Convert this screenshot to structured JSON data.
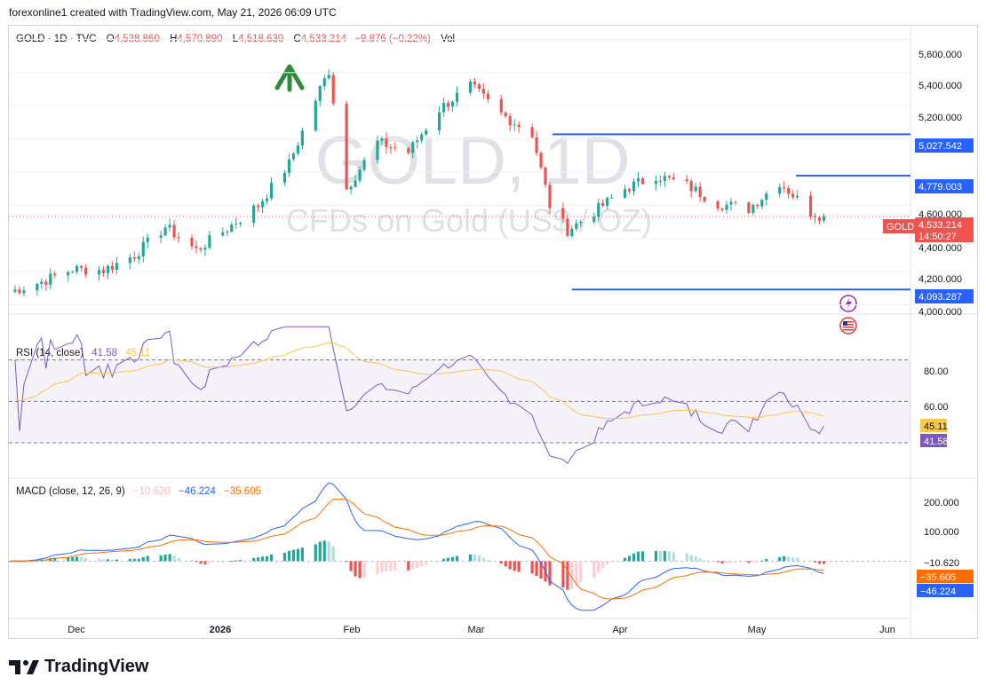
{
  "caption": "forexonline1 created with TradingView.com, May 21, 2026 06:09 UTC",
  "brand": {
    "name": "TradingView"
  },
  "legend": {
    "symbol": "GOLD · 1D · TVC",
    "o_label": "O",
    "o_value": "4,538.860",
    "h_label": "H",
    "h_value": "4,570.890",
    "l_label": "L",
    "l_value": "4,518.630",
    "c_label": "C",
    "c_value": "4,533.214",
    "change": "−9.876 (−0.22%)",
    "vol": "Vol"
  },
  "watermark": {
    "line1": "GOLD, 1D",
    "line2": "CFDs on Gold (US$ / OZ)"
  },
  "price_axis": [
    "5,600.000",
    "5,400.000",
    "5,200.000",
    "4,600.000",
    "4,400.000",
    "4,200.000",
    "4,000.000"
  ],
  "levels": [
    {
      "label": "5,027.542",
      "value": 5027.542
    },
    {
      "label": "4,779.003",
      "value": 4779.003
    },
    {
      "label": "4,093.287",
      "value": 4093.287
    }
  ],
  "last_price": {
    "symbol": "GOLD",
    "value": "4,533.214",
    "countdown": "14:50:27"
  },
  "rsi": {
    "title": "RSI (14, close)",
    "value1": "41.58",
    "value2": "45.11",
    "axis": [
      "80.00",
      "60.00"
    ],
    "upper_band": 70,
    "middle_band": 50,
    "lower_band": 30
  },
  "macd": {
    "title": "MACD (close, 12, 26, 9)",
    "hist": "−10.620",
    "macd": "−46.224",
    "signal": "−35.605",
    "axis": [
      "200.000",
      "100.000"
    ]
  },
  "time_axis": [
    "Dec",
    "2026",
    "Feb",
    "Mar",
    "Apr",
    "May",
    "Jun"
  ],
  "colors": {
    "up": "#26a69a",
    "down": "#ef5350",
    "level": "#2962ff",
    "rsi": "#7e57c2",
    "rsi_ma": "#f7c84a",
    "macd": "#2962ff",
    "signal": "#ff6d00",
    "arrow": "#2e8b3a"
  },
  "chart_data": {
    "type": "candlestick",
    "title": "GOLD · 1D · TVC",
    "ylim": [
      3950,
      5650
    ],
    "x_range": [
      "2025-11-18",
      "2026-06-09"
    ],
    "ohlc_note": "approximate daily closes read from chart",
    "closes": [
      {
        "date": "2025-11-18",
        "close": 4080
      },
      {
        "date": "2025-11-25",
        "close": 4140
      },
      {
        "date": "2025-12-02",
        "close": 4215
      },
      {
        "date": "2025-12-09",
        "close": 4210
      },
      {
        "date": "2025-12-16",
        "close": 4300
      },
      {
        "date": "2025-12-23",
        "close": 4470
      },
      {
        "date": "2025-12-30",
        "close": 4330
      },
      {
        "date": "2026-01-06",
        "close": 4460
      },
      {
        "date": "2026-01-13",
        "close": 4600
      },
      {
        "date": "2026-01-20",
        "close": 4850
      },
      {
        "date": "2026-01-27",
        "close": 5300
      },
      {
        "date": "2026-01-29",
        "close": 5410
      },
      {
        "date": "2026-02-02",
        "close": 4700
      },
      {
        "date": "2026-02-09",
        "close": 4980
      },
      {
        "date": "2026-02-16",
        "close": 4920
      },
      {
        "date": "2026-02-23",
        "close": 5180
      },
      {
        "date": "2026-03-02",
        "close": 5320
      },
      {
        "date": "2026-03-09",
        "close": 5150
      },
      {
        "date": "2026-03-16",
        "close": 5030
      },
      {
        "date": "2026-03-20",
        "close": 4600
      },
      {
        "date": "2026-03-24",
        "close": 4450
      },
      {
        "date": "2026-03-30",
        "close": 4560
      },
      {
        "date": "2026-04-06",
        "close": 4700
      },
      {
        "date": "2026-04-13",
        "close": 4780
      },
      {
        "date": "2026-04-20",
        "close": 4720
      },
      {
        "date": "2026-04-27",
        "close": 4610
      },
      {
        "date": "2026-05-04",
        "close": 4580
      },
      {
        "date": "2026-05-11",
        "close": 4740
      },
      {
        "date": "2026-05-18",
        "close": 4560
      },
      {
        "date": "2026-05-21",
        "close": 4533.214
      }
    ],
    "rsi_ylim": [
      15,
      90
    ],
    "macd_ylim": [
      -160,
      250
    ]
  }
}
